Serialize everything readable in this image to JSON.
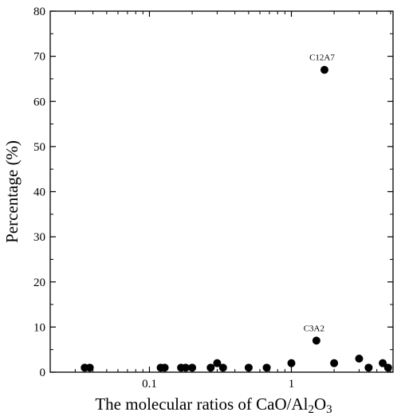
{
  "chart_data": {
    "type": "scatter",
    "xscale": "log",
    "xlim": [
      0.02,
      5.2
    ],
    "ylim": [
      0,
      80
    ],
    "xlabel": {
      "prefix": "The molecular ratios of CaO/Al",
      "sub1": "2",
      "mid": "O",
      "sub2": "3"
    },
    "ylabel": "Percentage (%)",
    "x_ticks": [
      {
        "value": 0.1,
        "label": "0.1"
      },
      {
        "value": 1,
        "label": "1"
      }
    ],
    "y_ticks": [
      {
        "value": 0,
        "label": "0"
      },
      {
        "value": 10,
        "label": "10"
      },
      {
        "value": 20,
        "label": "20"
      },
      {
        "value": 30,
        "label": "30"
      },
      {
        "value": 40,
        "label": "40"
      },
      {
        "value": 50,
        "label": "50"
      },
      {
        "value": 60,
        "label": "60"
      },
      {
        "value": 70,
        "label": "70"
      },
      {
        "value": 80,
        "label": "80"
      }
    ],
    "marker_color": "#000000",
    "points": [
      {
        "x": 0.035,
        "y": 1
      },
      {
        "x": 0.038,
        "y": 1
      },
      {
        "x": 0.12,
        "y": 1
      },
      {
        "x": 0.128,
        "y": 1
      },
      {
        "x": 0.167,
        "y": 1
      },
      {
        "x": 0.18,
        "y": 1
      },
      {
        "x": 0.2,
        "y": 1
      },
      {
        "x": 0.27,
        "y": 1
      },
      {
        "x": 0.3,
        "y": 2
      },
      {
        "x": 0.33,
        "y": 1
      },
      {
        "x": 0.5,
        "y": 1
      },
      {
        "x": 0.67,
        "y": 1
      },
      {
        "x": 1.0,
        "y": 2
      },
      {
        "x": 1.5,
        "y": 7
      },
      {
        "x": 1.71,
        "y": 67
      },
      {
        "x": 2.0,
        "y": 2
      },
      {
        "x": 3.0,
        "y": 3
      },
      {
        "x": 3.5,
        "y": 1
      },
      {
        "x": 4.4,
        "y": 2
      },
      {
        "x": 4.8,
        "y": 1
      }
    ],
    "annotations": [
      {
        "text": "C12A7",
        "x": 1.71,
        "y": 67,
        "color": "#cc0000"
      },
      {
        "text": "C3A2",
        "x": 1.5,
        "y": 7,
        "color": "#000000"
      }
    ]
  }
}
